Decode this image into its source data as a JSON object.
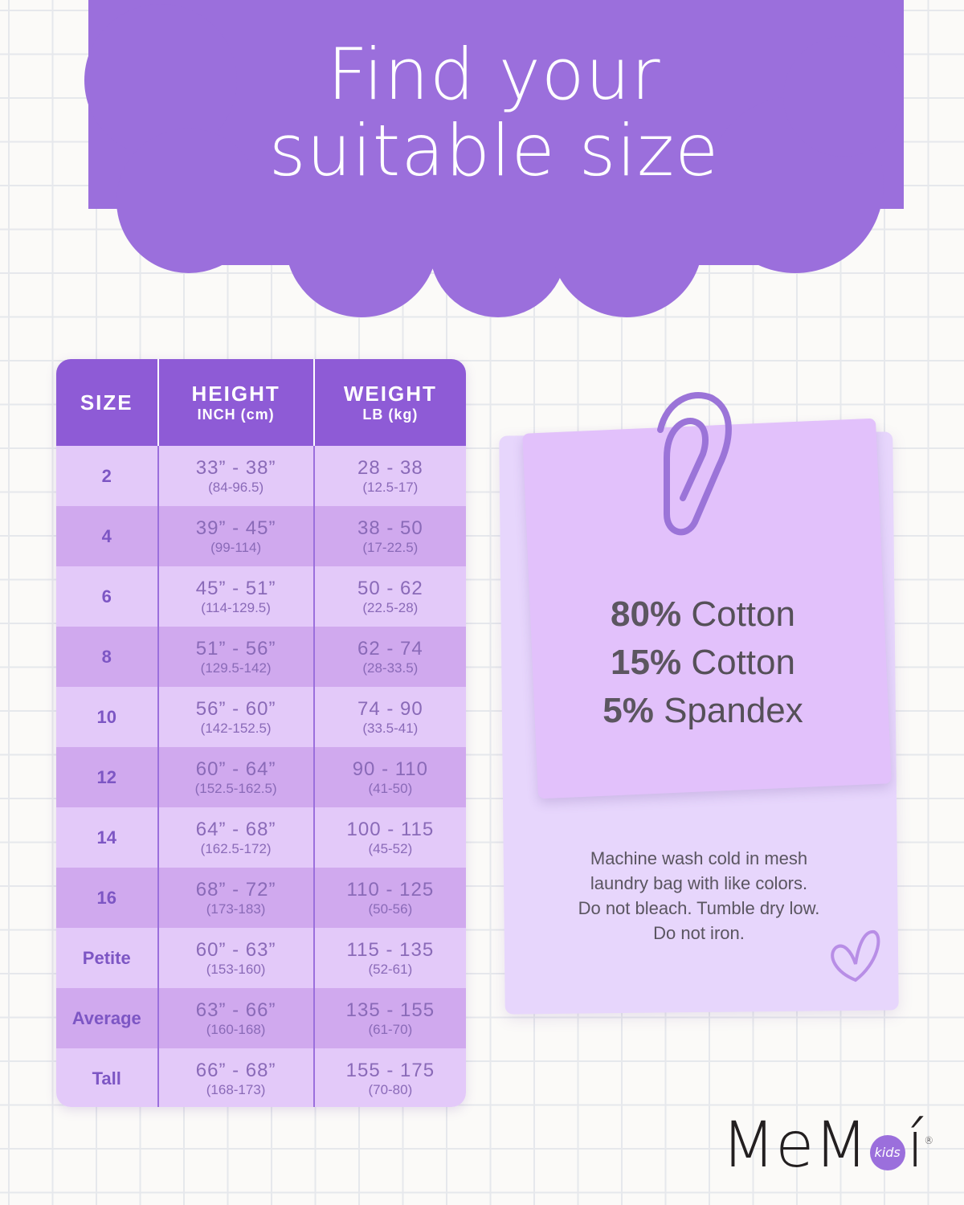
{
  "title": {
    "line1": "Find your",
    "line2": "suitable size"
  },
  "colors": {
    "cloud": "#9b6fdc",
    "header": "#8e5bd6",
    "row_light": "#e3c9f9",
    "row_dark": "#d0a9ee",
    "note": "#e2c1fb"
  },
  "table": {
    "headers": [
      {
        "main": "SIZE",
        "sub": ""
      },
      {
        "main": "HEIGHT",
        "sub": "INCH (cm)"
      },
      {
        "main": "WEIGHT",
        "sub": "LB (kg)"
      }
    ],
    "rows": [
      {
        "size": "2",
        "height": "33” - 38”",
        "height_cm": "(84-96.5)",
        "weight": "28 - 38",
        "weight_kg": "(12.5-17)"
      },
      {
        "size": "4",
        "height": "39” - 45”",
        "height_cm": "(99-114)",
        "weight": "38 - 50",
        "weight_kg": "(17-22.5)"
      },
      {
        "size": "6",
        "height": "45” - 51”",
        "height_cm": "(114-129.5)",
        "weight": "50 - 62",
        "weight_kg": "(22.5-28)"
      },
      {
        "size": "8",
        "height": "51” - 56”",
        "height_cm": "(129.5-142)",
        "weight": "62 - 74",
        "weight_kg": "(28-33.5)"
      },
      {
        "size": "10",
        "height": "56” - 60”",
        "height_cm": "(142-152.5)",
        "weight": "74 - 90",
        "weight_kg": "(33.5-41)"
      },
      {
        "size": "12",
        "height": "60” - 64”",
        "height_cm": "(152.5-162.5)",
        "weight": "90 - 110",
        "weight_kg": "(41-50)"
      },
      {
        "size": "14",
        "height": "64” - 68”",
        "height_cm": "(162.5-172)",
        "weight": "100 - 115",
        "weight_kg": "(45-52)"
      },
      {
        "size": "16",
        "height": "68” - 72”",
        "height_cm": "(173-183)",
        "weight": "110 - 125",
        "weight_kg": "(50-56)"
      },
      {
        "size": "Petite",
        "height": "60” - 63”",
        "height_cm": "(153-160)",
        "weight": "115 - 135",
        "weight_kg": "(52-61)"
      },
      {
        "size": "Average",
        "height": "63” - 66”",
        "height_cm": "(160-168)",
        "weight": "135 - 155",
        "weight_kg": "(61-70)"
      },
      {
        "size": "Tall",
        "height": "66” - 68”",
        "height_cm": "(168-173)",
        "weight": "155 - 175",
        "weight_kg": "(70-80)"
      }
    ]
  },
  "fabric": [
    {
      "pct": "80%",
      "name": "Cotton"
    },
    {
      "pct": "15%",
      "name": "Cotton"
    },
    {
      "pct": "5%",
      "name": "Spandex"
    }
  ],
  "care": [
    "Machine wash cold in mesh",
    "laundry bag with like colors.",
    "Do not bleach. Tumble dry low.",
    "Do not iron."
  ],
  "logo": {
    "text": "MeM",
    "kids": "kids",
    "end": "í",
    "reg": "®"
  },
  "icons": {
    "clip": "paperclip-icon",
    "heart": "heart-icon"
  }
}
